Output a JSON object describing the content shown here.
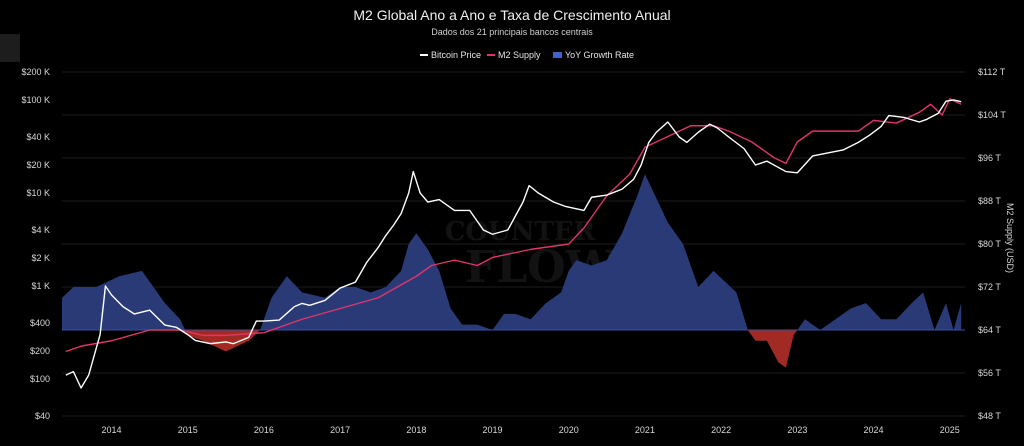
{
  "chart_data": {
    "type": "line",
    "title": "M2 Global Ano a Ano e Taxa de Crescimento Anual",
    "subtitle": "Dados dos 21 principais bancos centrais",
    "y_right_label": "M2 Supply (USD)",
    "legend": [
      "Bitcoin Price",
      "M2 Supply",
      "YoY Growth Rate"
    ],
    "x_ticks": [
      "2014",
      "2015",
      "2016",
      "2017",
      "2018",
      "2019",
      "2020",
      "2021",
      "2022",
      "2023",
      "2024",
      "2025"
    ],
    "y_left_ticks": [
      "$40",
      "$100",
      "$200",
      "$400",
      "$1 K",
      "$2 K",
      "$4 K",
      "$10 K",
      "$20 K",
      "$40 K",
      "$100 K",
      "$200 K"
    ],
    "y_left_values": [
      40,
      100,
      200,
      400,
      1000,
      2000,
      4000,
      10000,
      20000,
      40000,
      100000,
      200000
    ],
    "y_right_ticks": [
      "$48 T",
      "$56 T",
      "$64 T",
      "$72 T",
      "$80 T",
      "$88 T",
      "$96 T",
      "$104 T",
      "$112 T"
    ],
    "y_right_values": [
      48,
      56,
      64,
      72,
      80,
      88,
      96,
      104,
      112
    ],
    "x_range": [
      2013.35,
      2025.2
    ],
    "y_left_range": [
      40,
      200000
    ],
    "y_left_scale": "log",
    "y_right_range": [
      48,
      112
    ],
    "colors": {
      "bitcoin": "#ffffff",
      "m2": "#e0356b",
      "yoy_pos": "#2b3d7d",
      "yoy_neg": "#a12b24"
    },
    "series": [
      {
        "name": "Bitcoin Price",
        "axis": "left",
        "x": [
          2013.4,
          2013.5,
          2013.6,
          2013.7,
          2013.85,
          2013.92,
          2014.0,
          2014.15,
          2014.3,
          2014.5,
          2014.7,
          2014.85,
          2015.0,
          2015.1,
          2015.3,
          2015.5,
          2015.6,
          2015.8,
          2015.9,
          2016.0,
          2016.2,
          2016.4,
          2016.5,
          2016.6,
          2016.8,
          2017.0,
          2017.2,
          2017.35,
          2017.5,
          2017.6,
          2017.7,
          2017.8,
          2017.9,
          2017.96,
          2018.05,
          2018.15,
          2018.3,
          2018.5,
          2018.7,
          2018.88,
          2019.0,
          2019.2,
          2019.4,
          2019.48,
          2019.6,
          2019.8,
          2019.95,
          2020.2,
          2020.3,
          2020.5,
          2020.7,
          2020.85,
          2020.95,
          2021.05,
          2021.15,
          2021.3,
          2021.45,
          2021.55,
          2021.7,
          2021.85,
          2021.95,
          2022.1,
          2022.3,
          2022.45,
          2022.6,
          2022.85,
          2023.0,
          2023.2,
          2023.4,
          2023.6,
          2023.8,
          2023.95,
          2024.1,
          2024.2,
          2024.4,
          2024.6,
          2024.7,
          2024.85,
          2024.95,
          2025.05,
          2025.15
        ],
        "y": [
          110,
          120,
          80,
          110,
          300,
          1000,
          800,
          600,
          500,
          550,
          380,
          360,
          300,
          260,
          240,
          250,
          240,
          280,
          420,
          420,
          430,
          600,
          650,
          620,
          700,
          950,
          1100,
          1800,
          2600,
          3500,
          4500,
          6000,
          10000,
          17000,
          10000,
          8000,
          8500,
          6500,
          6500,
          4000,
          3600,
          4000,
          8000,
          12000,
          10000,
          8000,
          7200,
          6500,
          9000,
          9500,
          11000,
          14000,
          20000,
          35000,
          45000,
          58000,
          40000,
          35000,
          45000,
          55000,
          50000,
          40000,
          30000,
          20000,
          22000,
          17000,
          16500,
          25000,
          27000,
          29000,
          35000,
          42000,
          52000,
          68000,
          65000,
          58000,
          62000,
          72000,
          97000,
          100000,
          96000
        ]
      },
      {
        "name": "M2 Supply",
        "axis": "right",
        "x": [
          2013.4,
          2013.6,
          2014.0,
          2014.5,
          2014.9,
          2015.2,
          2015.5,
          2016.0,
          2016.5,
          2017.0,
          2017.5,
          2018.0,
          2018.2,
          2018.5,
          2018.8,
          2019.0,
          2019.5,
          2020.0,
          2020.2,
          2020.5,
          2020.8,
          2021.0,
          2021.3,
          2021.6,
          2021.9,
          2022.1,
          2022.4,
          2022.7,
          2022.85,
          2023.0,
          2023.2,
          2023.5,
          2023.8,
          2024.0,
          2024.3,
          2024.6,
          2024.75,
          2024.9,
          2025.0,
          2025.15
        ],
        "y": [
          60,
          61,
          62,
          64,
          64,
          63,
          63,
          63.5,
          66,
          68,
          70,
          74,
          76,
          77,
          76,
          77.5,
          79,
          80,
          83,
          89,
          93,
          98,
          100,
          102,
          102,
          101,
          99,
          96,
          95,
          99,
          101,
          101,
          101,
          103,
          102.5,
          104.5,
          106,
          104,
          107,
          106
        ]
      },
      {
        "name": "YoY Growth Rate",
        "axis": "right",
        "x": [
          2013.35,
          2013.5,
          2013.8,
          2014.1,
          2014.4,
          2014.7,
          2014.9,
          2015.0,
          2015.2,
          2015.5,
          2015.8,
          2015.95,
          2016.1,
          2016.3,
          2016.5,
          2016.8,
          2017.0,
          2017.2,
          2017.4,
          2017.6,
          2017.8,
          2017.9,
          2018.0,
          2018.15,
          2018.3,
          2018.45,
          2018.6,
          2018.8,
          2019.0,
          2019.15,
          2019.3,
          2019.5,
          2019.7,
          2019.9,
          2020.0,
          2020.1,
          2020.3,
          2020.5,
          2020.7,
          2020.9,
          2021.0,
          2021.1,
          2021.3,
          2021.5,
          2021.7,
          2021.9,
          2022.05,
          2022.2,
          2022.35,
          2022.45,
          2022.6,
          2022.75,
          2022.85,
          2022.95,
          2023.1,
          2023.3,
          2023.5,
          2023.7,
          2023.9,
          2024.1,
          2024.3,
          2024.5,
          2024.65,
          2024.8,
          2024.95,
          2025.05,
          2025.15
        ],
        "y": [
          70,
          72,
          72,
          74,
          75,
          69,
          66,
          63,
          62,
          60,
          62,
          64,
          70,
          74,
          71,
          70,
          72,
          72,
          71,
          72,
          75,
          80,
          82,
          79,
          75,
          68,
          65,
          65,
          64,
          67,
          67,
          66,
          69,
          71,
          75,
          77,
          76,
          77,
          82,
          89,
          93,
          90,
          84,
          80,
          72,
          75,
          73,
          71,
          64,
          62,
          62,
          58,
          57,
          63,
          66,
          64,
          66,
          68,
          69,
          66,
          66,
          69,
          71,
          64,
          69,
          64,
          69
        ]
      }
    ]
  }
}
